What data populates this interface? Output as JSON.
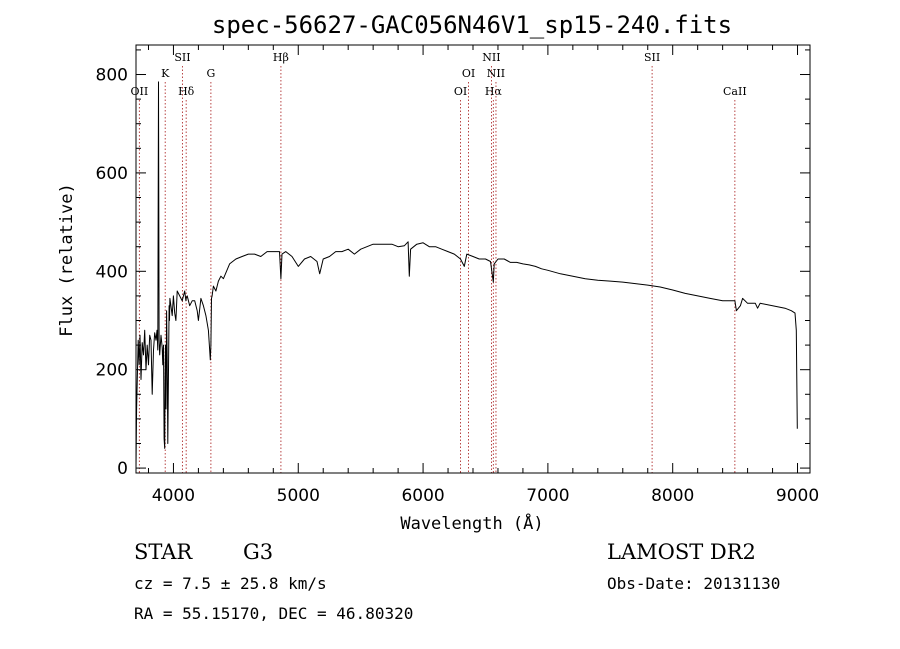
{
  "chart_data": {
    "type": "line",
    "title": "spec-56627-GAC056N46V1_sp15-240.fits",
    "xlabel": "Wavelength (Å)",
    "ylabel": "Flux (relative)",
    "xlim": [
      3700,
      9100
    ],
    "ylim": [
      -10,
      860
    ],
    "x_ticks": [
      4000,
      5000,
      6000,
      7000,
      8000,
      9000
    ],
    "y_ticks": [
      0,
      200,
      400,
      600,
      800
    ],
    "grid": false,
    "line_color": "#000000",
    "marker_color": "#b03030",
    "series": [
      {
        "x": [
          3700,
          3705,
          3712,
          3718,
          3725,
          3732,
          3740,
          3750,
          3760,
          3770,
          3780,
          3790,
          3800,
          3810,
          3820,
          3830,
          3840,
          3850,
          3860,
          3868,
          3875,
          3880,
          3885,
          3890,
          3900,
          3910,
          3915,
          3920,
          3925,
          3930,
          3933,
          3936,
          3940,
          3945,
          3950,
          3955,
          3960,
          3965,
          3968,
          3972,
          3980,
          3990,
          4000,
          4010,
          4020,
          4030,
          4050,
          4070,
          4090,
          4100,
          4102,
          4110,
          4130,
          4150,
          4170,
          4190,
          4200,
          4220,
          4240,
          4260,
          4280,
          4295,
          4300,
          4305,
          4310,
          4320,
          4340,
          4360,
          4380,
          4400,
          4450,
          4500,
          4550,
          4600,
          4650,
          4700,
          4750,
          4800,
          4850,
          4861,
          4870,
          4900,
          4950,
          5000,
          5050,
          5100,
          5150,
          5172,
          5200,
          5250,
          5300,
          5350,
          5400,
          5450,
          5500,
          5550,
          5600,
          5650,
          5700,
          5750,
          5800,
          5850,
          5880,
          5890,
          5900,
          5950,
          6000,
          6050,
          6100,
          6150,
          6200,
          6250,
          6300,
          6330,
          6350,
          6400,
          6450,
          6500,
          6540,
          6563,
          6570,
          6600,
          6650,
          6700,
          6750,
          6800,
          6850,
          6900,
          6950,
          7000,
          7100,
          7200,
          7300,
          7400,
          7500,
          7600,
          7700,
          7800,
          7900,
          8000,
          8100,
          8200,
          8300,
          8400,
          8498,
          8510,
          8542,
          8560,
          8600,
          8662,
          8680,
          8700,
          8800,
          8900,
          8950,
          8980,
          8990,
          8998
        ],
        "y": [
          0,
          120,
          200,
          260,
          210,
          270,
          180,
          255,
          230,
          280,
          200,
          250,
          210,
          270,
          260,
          150,
          240,
          275,
          260,
          280,
          240,
          785,
          260,
          230,
          270,
          245,
          210,
          250,
          60,
          40,
          180,
          250,
          120,
          320,
          220,
          50,
          200,
          330,
          300,
          345,
          330,
          310,
          350,
          315,
          300,
          360,
          350,
          340,
          360,
          340,
          345,
          350,
          330,
          340,
          340,
          320,
          300,
          345,
          330,
          310,
          280,
          220,
          250,
          345,
          350,
          370,
          360,
          380,
          390,
          385,
          415,
          425,
          430,
          435,
          435,
          430,
          440,
          440,
          440,
          385,
          435,
          440,
          430,
          410,
          425,
          430,
          420,
          395,
          425,
          430,
          440,
          440,
          445,
          435,
          445,
          450,
          455,
          455,
          455,
          455,
          450,
          452,
          460,
          390,
          445,
          455,
          458,
          450,
          450,
          445,
          440,
          435,
          425,
          410,
          435,
          430,
          425,
          425,
          420,
          378,
          415,
          425,
          425,
          418,
          418,
          415,
          413,
          410,
          405,
          402,
          395,
          390,
          385,
          382,
          380,
          378,
          375,
          372,
          368,
          362,
          355,
          350,
          345,
          340,
          340,
          320,
          330,
          345,
          335,
          335,
          325,
          335,
          330,
          325,
          320,
          315,
          280,
          80
        ]
      }
    ],
    "line_markers": [
      {
        "label": "OII",
        "x": 3727,
        "row": 3
      },
      {
        "label": "K",
        "x": 3934,
        "row": 2
      },
      {
        "label": "SII",
        "x": 4072,
        "row": 1
      },
      {
        "label": "Hδ",
        "x": 4102,
        "row": 3
      },
      {
        "label": "G",
        "x": 4300,
        "row": 2
      },
      {
        "label": "Hβ",
        "x": 4861,
        "row": 1
      },
      {
        "label": "OI",
        "x": 6300,
        "row": 3
      },
      {
        "label": "OI",
        "x": 6364,
        "row": 2
      },
      {
        "label": "NII",
        "x": 6548,
        "row": 1
      },
      {
        "label": "Hα",
        "x": 6563,
        "row": 3
      },
      {
        "label": "NII",
        "x": 6584,
        "row": 2
      },
      {
        "label": "SII",
        "x": 7835,
        "row": 1
      },
      {
        "label": "CaII",
        "x": 8498,
        "row": 3
      }
    ]
  },
  "info": {
    "object_class": "STAR",
    "subclass": "G3",
    "redshift": "cz = 7.5 ± 25.8 km/s",
    "coords": "RA =  55.15170, DEC =  46.80320",
    "survey": "LAMOST DR2",
    "obs_date": "Obs-Date: 20131130"
  }
}
